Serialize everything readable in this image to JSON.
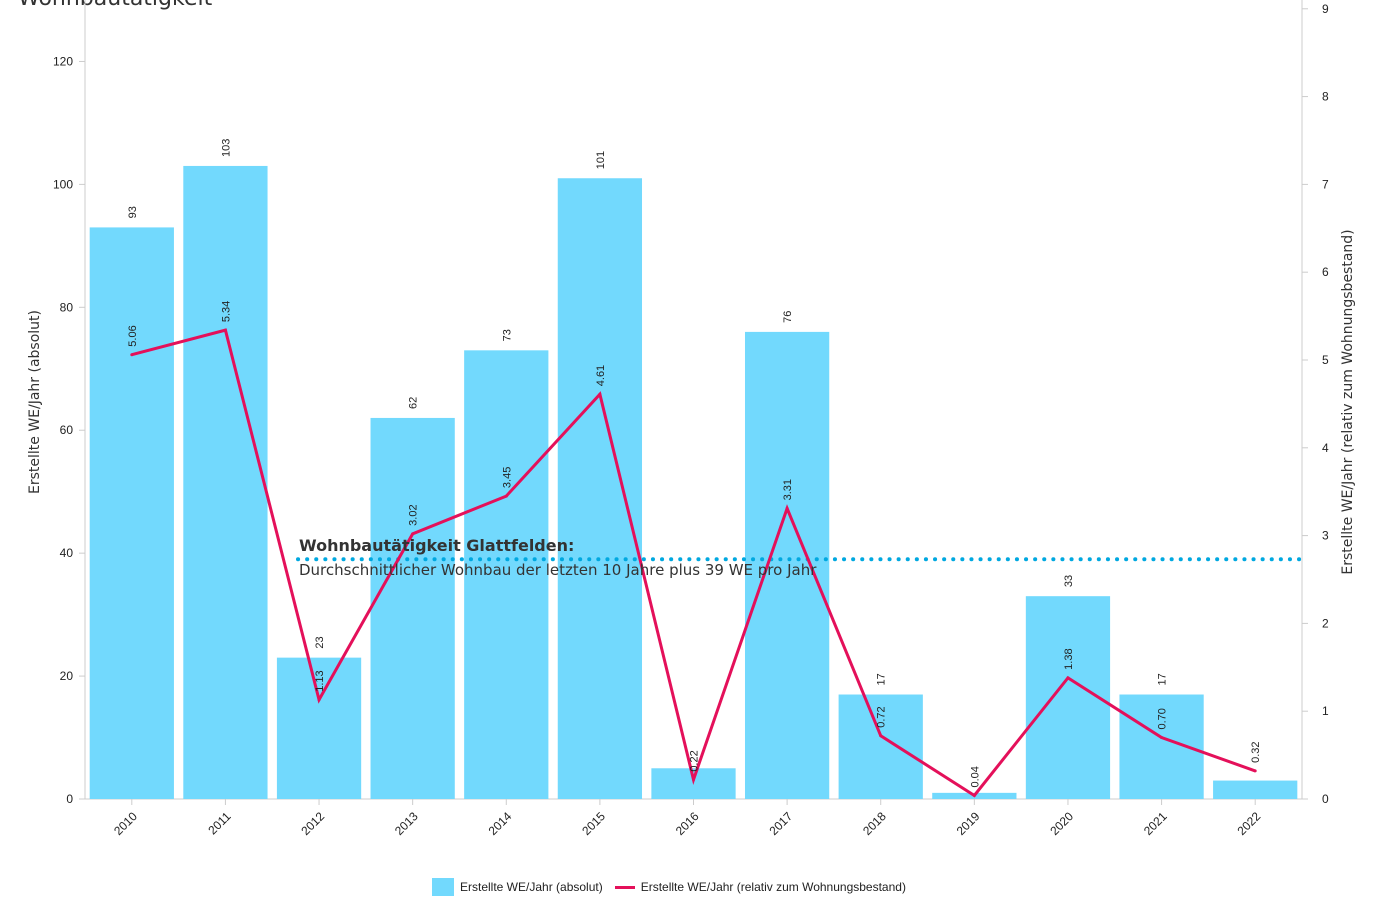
{
  "title": "Wohnbautätigkeit",
  "colors": {
    "bar": "#72d9fd",
    "line": "#e4105a",
    "dotted": "#00a8e0",
    "axis": "#cccccc",
    "text": "#222222"
  },
  "annotation": {
    "title": "Wohnbautätigkeit Glattfelden:",
    "text": "Durchschnittlicher Wohnbau der letzten 10 Jahre plus 39 WE pro Jahr"
  },
  "chart_data": {
    "type": "bar",
    "categories": [
      "2010",
      "2011",
      "2012",
      "2013",
      "2014",
      "2015",
      "2016",
      "2017",
      "2018",
      "2019",
      "2020",
      "2021",
      "2022"
    ],
    "series": [
      {
        "name": "Erstellte WE/Jahr (absolut)",
        "type": "bar",
        "axis": "left",
        "values": [
          93,
          103,
          23,
          62,
          73,
          101,
          5,
          76,
          17,
          1,
          33,
          17,
          3
        ]
      },
      {
        "name": "Erstellte WE/Jahr (relativ zum Wohnungsbestand)",
        "type": "line",
        "axis": "right",
        "values": [
          5.06,
          5.34,
          1.13,
          3.02,
          3.45,
          4.61,
          0.22,
          3.31,
          0.72,
          0.04,
          1.38,
          0.7,
          0.32
        ],
        "labels": [
          "5.06",
          "5.34",
          "1.13",
          "3.02",
          "3.45",
          "4.61",
          "0.22",
          "3.31",
          "0.72",
          "0.04",
          "1.38",
          "0.70",
          "0.32"
        ]
      }
    ],
    "bar_labels": [
      "93",
      "103",
      "23",
      "62",
      "73",
      "101",
      "",
      "76",
      "17",
      "",
      "33",
      "17",
      ""
    ],
    "reference_line": {
      "value": 39,
      "axis": "left"
    },
    "ylabel": "Erstellte WE/Jahr (absolut)",
    "y2label": "Erstellte WE/Jahr (relativ zum Wohnungsbestand)",
    "ylim": [
      0,
      130
    ],
    "yticks": [
      0,
      20,
      40,
      60,
      80,
      100,
      120
    ],
    "y2lim": [
      0,
      9.1
    ],
    "y2ticks": [
      0,
      1,
      2,
      3,
      4,
      5,
      6,
      7,
      8,
      9
    ],
    "legend": "bottom-center",
    "grid": false
  }
}
